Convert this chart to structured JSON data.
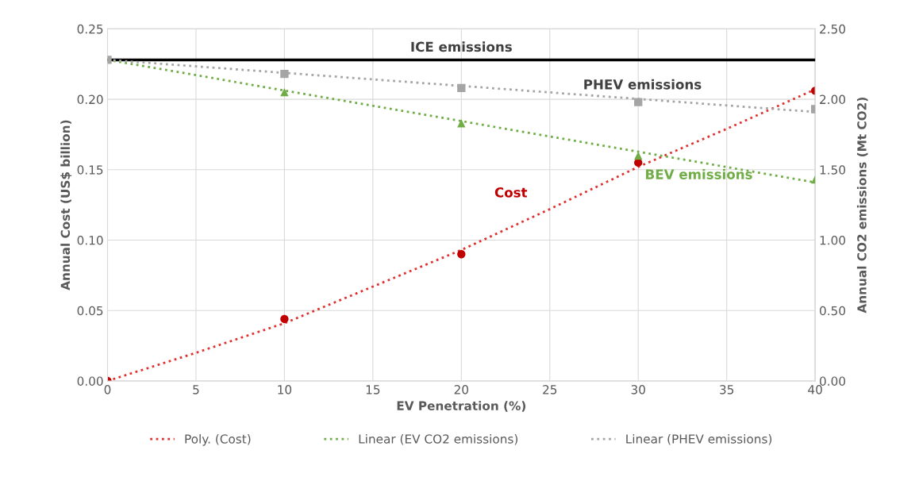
{
  "chart_data": {
    "type": "line",
    "xlabel": "EV Penetration (%)",
    "ylabel": "Annual Cost (US$ billion)",
    "y2label": "Annual CO2 emissions (Mt CO2)",
    "xlim": [
      0,
      40
    ],
    "xticks": [
      0,
      5,
      10,
      15,
      20,
      25,
      30,
      35,
      40
    ],
    "ylim": [
      0,
      0.25
    ],
    "yticks": [
      {
        "value": 0,
        "label": "0.00"
      },
      {
        "value": 0.05,
        "label": "0.05"
      },
      {
        "value": 0.1,
        "label": "0.10"
      },
      {
        "value": 0.15,
        "label": "0.15"
      },
      {
        "value": 0.2,
        "label": "0.20"
      },
      {
        "value": 0.25,
        "label": "0.25"
      }
    ],
    "y2lim": [
      0,
      2.5
    ],
    "y2ticks": [
      {
        "value": 0,
        "label": "0.00"
      },
      {
        "value": 0.5,
        "label": "0.50"
      },
      {
        "value": 1,
        "label": "1.00"
      },
      {
        "value": 1.5,
        "label": "1.50"
      },
      {
        "value": 2,
        "label": "2.00"
      },
      {
        "value": 2.5,
        "label": "2.50"
      }
    ],
    "grid": true,
    "legend": "bottom",
    "annotations": [
      "Cost",
      "BEV emissions",
      "PHEV emissions"
    ],
    "ref_lines": [
      {
        "axis": "y2",
        "value": 2.28,
        "label": "ICE emissions",
        "color": "#000000",
        "line_style": "solid"
      }
    ],
    "series": [
      {
        "type": "scatter",
        "marker": "circle",
        "color": "#c00000",
        "x": [
          0,
          10,
          20,
          30,
          40
        ],
        "values": [
          0,
          0.044,
          0.09,
          0.155,
          0.206
        ]
      },
      {
        "type": "scatter",
        "marker": "triangle",
        "axis": "y2",
        "color": "#70ad47",
        "x": [
          10,
          20,
          30,
          40
        ],
        "values": [
          2.05,
          1.83,
          1.6,
          1.43
        ]
      },
      {
        "type": "scatter",
        "marker": "square",
        "axis": "y2",
        "color": "#a5a5a5",
        "x": [
          0,
          10,
          20,
          30,
          40
        ],
        "values": [
          2.28,
          2.18,
          2.08,
          1.98,
          1.93
        ]
      },
      {
        "name": "Poly. (Cost)",
        "line_style": "dotted",
        "color": "#e03030",
        "x": [
          0,
          5,
          10,
          15,
          20,
          25,
          30,
          35,
          40
        ],
        "values": [
          0,
          0.02,
          0.041,
          0.067,
          0.093,
          0.122,
          0.152,
          0.179,
          0.207
        ]
      },
      {
        "name": "Linear (EV CO2 emissions)",
        "line_style": "dotted",
        "axis": "y2",
        "color": "#70ad47",
        "x": [
          0,
          40
        ],
        "values": [
          2.28,
          1.41
        ]
      },
      {
        "name": "Linear (PHEV emissions)",
        "line_style": "dotted",
        "axis": "y2",
        "color": "#a5a5a5",
        "x": [
          0,
          40
        ],
        "values": [
          2.28,
          1.91
        ]
      }
    ]
  }
}
